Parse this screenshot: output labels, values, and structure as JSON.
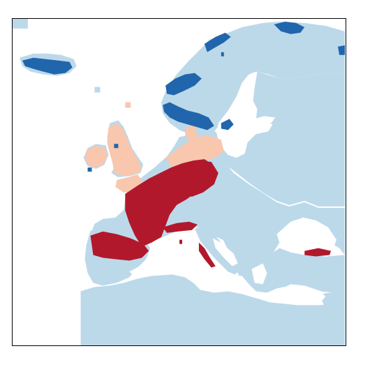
{
  "map": {
    "background_color": "#ffffff",
    "frame_color": "#000000",
    "legend": [],
    "categories": [
      {
        "name": "sea",
        "color": "#ffffff"
      },
      {
        "name": "land-no-data",
        "color": "#bcd9ea"
      },
      {
        "name": "dark-blue-category",
        "color": "#2166ac"
      },
      {
        "name": "light-salmon-category",
        "color": "#f8c7ae"
      },
      {
        "name": "dark-red-category",
        "color": "#b2182b"
      }
    ]
  }
}
